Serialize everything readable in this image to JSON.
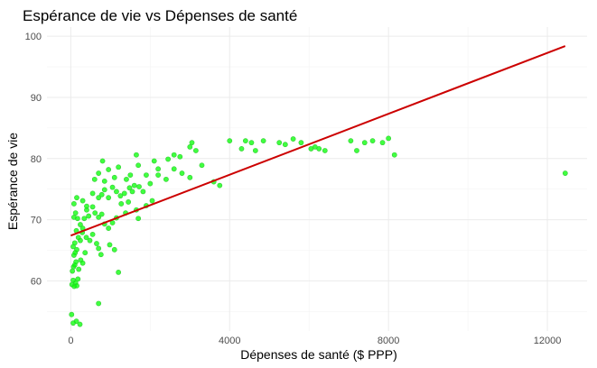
{
  "chart_data": {
    "type": "scatter",
    "title": "Espérance de vie vs Dépenses de santé",
    "xlabel": "Dépenses de santé ($ PPP)",
    "ylabel": "Espérance de vie",
    "xlim": [
      -600,
      13000
    ],
    "ylim": [
      51.8,
      101.5
    ],
    "x_ticks": [
      0,
      4000,
      8000,
      12000
    ],
    "y_ticks": [
      60,
      70,
      80,
      90,
      100
    ],
    "x_tick_labels": [
      "0",
      "4000",
      "8000",
      "12000"
    ],
    "y_tick_labels": [
      "60",
      "70",
      "80",
      "90",
      "100"
    ],
    "grid": true,
    "point_color": "#00ff00",
    "line_color": "#cc0000",
    "points": [
      [
        20,
        54.5
      ],
      [
        60,
        53.1
      ],
      [
        140,
        53.4
      ],
      [
        230,
        52.9
      ],
      [
        30,
        59.4
      ],
      [
        60,
        60.1
      ],
      [
        85,
        59.1
      ],
      [
        120,
        59.7
      ],
      [
        150,
        59.2
      ],
      [
        180,
        60.3
      ],
      [
        40,
        61.6
      ],
      [
        70,
        62.3
      ],
      [
        100,
        62.6
      ],
      [
        130,
        63.1
      ],
      [
        80,
        64.2
      ],
      [
        110,
        64.6
      ],
      [
        150,
        65.1
      ],
      [
        60,
        65.6
      ],
      [
        200,
        61.9
      ],
      [
        250,
        63.4
      ],
      [
        300,
        62.9
      ],
      [
        360,
        64.6
      ],
      [
        100,
        66.2
      ],
      [
        190,
        67.1
      ],
      [
        240,
        66.6
      ],
      [
        140,
        68.2
      ],
      [
        290,
        67.9
      ],
      [
        390,
        67.1
      ],
      [
        480,
        66.6
      ],
      [
        550,
        67.6
      ],
      [
        650,
        66.1
      ],
      [
        700,
        65.3
      ],
      [
        760,
        64.3
      ],
      [
        1100,
        65.1
      ],
      [
        980,
        65.9
      ],
      [
        1200,
        61.4
      ],
      [
        700,
        56.3
      ],
      [
        80,
        70.4
      ],
      [
        120,
        71.1
      ],
      [
        170,
        70.2
      ],
      [
        240,
        69.2
      ],
      [
        300,
        68.6
      ],
      [
        340,
        70.2
      ],
      [
        400,
        71.6
      ],
      [
        450,
        70.6
      ],
      [
        550,
        72.1
      ],
      [
        610,
        71.1
      ],
      [
        700,
        70.4
      ],
      [
        780,
        70.9
      ],
      [
        850,
        69.3
      ],
      [
        950,
        68.6
      ],
      [
        1050,
        69.5
      ],
      [
        1150,
        70.3
      ],
      [
        1270,
        72.6
      ],
      [
        1380,
        71.1
      ],
      [
        1450,
        72.9
      ],
      [
        1650,
        71.6
      ],
      [
        1700,
        70.2
      ],
      [
        1900,
        72.3
      ],
      [
        2050,
        73.1
      ],
      [
        80,
        72.6
      ],
      [
        150,
        73.6
      ],
      [
        300,
        73.1
      ],
      [
        400,
        72.2
      ],
      [
        550,
        74.3
      ],
      [
        700,
        73.6
      ],
      [
        780,
        74.1
      ],
      [
        850,
        74.9
      ],
      [
        950,
        73.6
      ],
      [
        1050,
        75.3
      ],
      [
        1150,
        74.6
      ],
      [
        1250,
        73.9
      ],
      [
        1350,
        74.3
      ],
      [
        1480,
        75.2
      ],
      [
        1550,
        74.6
      ],
      [
        1600,
        75.6
      ],
      [
        1720,
        75.4
      ],
      [
        1820,
        74.6
      ],
      [
        2000,
        75.9
      ],
      [
        2200,
        77.3
      ],
      [
        2400,
        76.6
      ],
      [
        2600,
        78.3
      ],
      [
        2800,
        77.6
      ],
      [
        3000,
        76.9
      ],
      [
        600,
        76.6
      ],
      [
        700,
        77.6
      ],
      [
        850,
        76.3
      ],
      [
        950,
        78.2
      ],
      [
        1100,
        76.9
      ],
      [
        1200,
        78.6
      ],
      [
        1400,
        76.6
      ],
      [
        1500,
        77.3
      ],
      [
        1700,
        78.9
      ],
      [
        1900,
        77.3
      ],
      [
        2100,
        79.6
      ],
      [
        2200,
        78.3
      ],
      [
        2450,
        79.9
      ],
      [
        2600,
        80.6
      ],
      [
        2750,
        80.3
      ],
      [
        3050,
        82.6
      ],
      [
        3300,
        78.9
      ],
      [
        3600,
        76.2
      ],
      [
        3750,
        75.6
      ],
      [
        3150,
        81.3
      ],
      [
        3000,
        81.9
      ],
      [
        4000,
        82.9
      ],
      [
        4300,
        81.6
      ],
      [
        4400,
        82.9
      ],
      [
        4550,
        82.6
      ],
      [
        4650,
        81.3
      ],
      [
        4850,
        82.9
      ],
      [
        5250,
        82.6
      ],
      [
        5400,
        82.3
      ],
      [
        5600,
        83.2
      ],
      [
        5800,
        82.6
      ],
      [
        6050,
        81.6
      ],
      [
        6150,
        81.9
      ],
      [
        6250,
        81.6
      ],
      [
        6400,
        81.3
      ],
      [
        7050,
        82.9
      ],
      [
        7200,
        81.3
      ],
      [
        7400,
        82.6
      ],
      [
        7600,
        82.9
      ],
      [
        7850,
        82.6
      ],
      [
        8000,
        83.3
      ],
      [
        8150,
        80.6
      ],
      [
        800,
        79.6
      ],
      [
        1650,
        80.6
      ],
      [
        12450,
        77.6
      ]
    ],
    "regression_line": {
      "x": [
        0,
        12450
      ],
      "y": [
        67.4,
        98.4
      ]
    }
  }
}
